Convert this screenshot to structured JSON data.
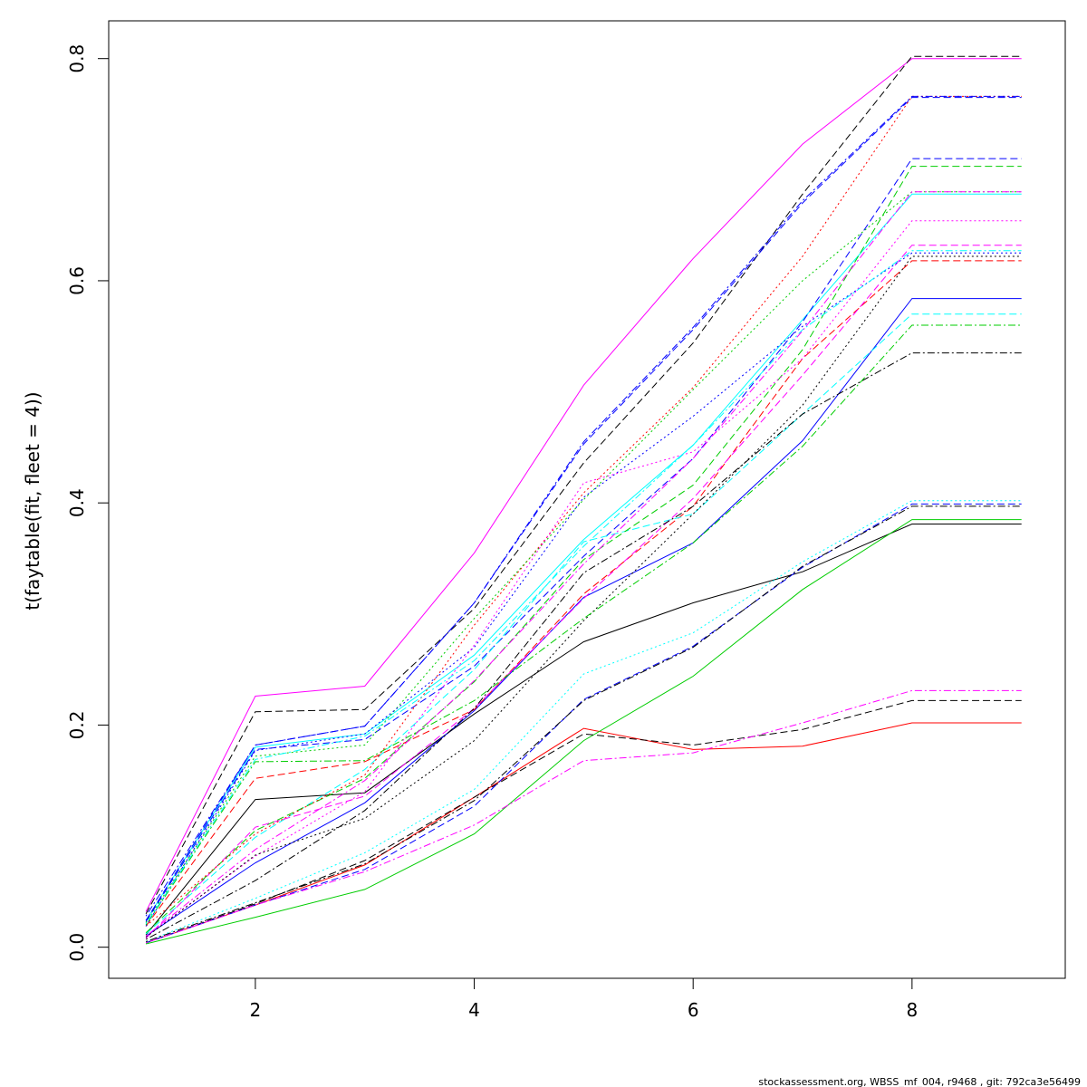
{
  "chart_data": {
    "type": "line",
    "title": "",
    "xlabel": "",
    "ylabel": "t(faytable(fit, fleet = 4))",
    "xlim": [
      0.66,
      9.4
    ],
    "ylim": [
      -0.028,
      0.834
    ],
    "x_ticks": [
      2,
      4,
      6,
      8
    ],
    "y_ticks": [
      0.0,
      0.2,
      0.4,
      0.6,
      0.8
    ],
    "x_tick_labels": [
      "2",
      "4",
      "6",
      "8"
    ],
    "y_tick_labels": [
      "0.0",
      "0.2",
      "0.4",
      "0.6",
      "0.8"
    ],
    "grid": false,
    "legend": "none",
    "x": [
      1,
      2,
      3,
      4,
      5,
      6,
      7,
      8,
      9
    ],
    "series": [
      {
        "color": "#000000",
        "dash": "solid",
        "values": [
          0.011,
          0.133,
          0.139,
          0.21,
          0.275,
          0.31,
          0.338,
          0.381,
          0.381
        ]
      },
      {
        "color": "#ff0000",
        "dash": "solid",
        "values": [
          0.004,
          0.038,
          0.074,
          0.135,
          0.197,
          0.178,
          0.181,
          0.202,
          0.202
        ]
      },
      {
        "color": "#00cd00",
        "dash": "solid",
        "values": [
          0.003,
          0.027,
          0.052,
          0.102,
          0.186,
          0.244,
          0.322,
          0.385,
          0.385
        ]
      },
      {
        "color": "#0000ff",
        "dash": "solid",
        "values": [
          0.01,
          0.076,
          0.13,
          0.213,
          0.315,
          0.364,
          0.456,
          0.584,
          0.584
        ]
      },
      {
        "color": "#00ffff",
        "dash": "solid",
        "values": [
          0.024,
          0.18,
          0.192,
          0.263,
          0.367,
          0.452,
          0.565,
          0.678,
          0.678
        ]
      },
      {
        "color": "#ff00ff",
        "dash": "solid",
        "values": [
          0.032,
          0.226,
          0.235,
          0.355,
          0.506,
          0.62,
          0.723,
          0.8,
          0.8
        ]
      },
      {
        "color": "#000000",
        "dash": "dashed",
        "values": [
          0.004,
          0.039,
          0.078,
          0.135,
          0.192,
          0.182,
          0.196,
          0.222,
          0.222
        ]
      },
      {
        "color": "#ff0000",
        "dash": "dashed",
        "values": [
          0.019,
          0.152,
          0.167,
          0.214,
          0.318,
          0.397,
          0.53,
          0.618,
          0.618
        ]
      },
      {
        "color": "#000000",
        "dash": "dashed",
        "values": [
          0.03,
          0.212,
          0.214,
          0.305,
          0.436,
          0.544,
          0.678,
          0.802,
          0.802
        ]
      },
      {
        "color": "#0000ff",
        "dash": "dashed",
        "values": [
          0.024,
          0.182,
          0.199,
          0.31,
          0.453,
          0.556,
          0.67,
          0.765,
          0.765
        ]
      },
      {
        "color": "#0000ff",
        "dash": "dashed",
        "values": [
          0.023,
          0.178,
          0.187,
          0.253,
          0.352,
          0.44,
          0.563,
          0.71,
          0.71
        ]
      },
      {
        "color": "#0000ff",
        "dash": "dashed",
        "values": [
          0.004,
          0.038,
          0.07,
          0.127,
          0.223,
          0.271,
          0.342,
          0.399,
          0.399
        ]
      },
      {
        "color": "#00ffff",
        "dash": "dashed",
        "values": [
          0.012,
          0.099,
          0.16,
          0.25,
          0.365,
          0.39,
          0.48,
          0.57,
          0.57
        ]
      },
      {
        "color": "#ff00ff",
        "dash": "dashed",
        "values": [
          0.008,
          0.108,
          0.136,
          0.215,
          0.314,
          0.404,
          0.515,
          0.632,
          0.632
        ]
      },
      {
        "color": "#00cd00",
        "dash": "dashed",
        "values": [
          0.013,
          0.105,
          0.152,
          0.239,
          0.349,
          0.416,
          0.538,
          0.703,
          0.703
        ]
      },
      {
        "color": "#ff0000",
        "dash": "dotted",
        "values": [
          0.019,
          0.102,
          0.155,
          0.29,
          0.409,
          0.504,
          0.622,
          0.766,
          0.766
        ]
      },
      {
        "color": "#00cd00",
        "dash": "dotted",
        "values": [
          0.022,
          0.172,
          0.182,
          0.296,
          0.403,
          0.502,
          0.6,
          0.68,
          0.68
        ]
      },
      {
        "color": "#0000ff",
        "dash": "dotted",
        "values": [
          0.019,
          0.177,
          0.192,
          0.27,
          0.405,
          0.478,
          0.559,
          0.625,
          0.625
        ]
      },
      {
        "color": "#00ffff",
        "dash": "dotted",
        "values": [
          0.005,
          0.044,
          0.085,
          0.142,
          0.246,
          0.283,
          0.347,
          0.402,
          0.402
        ]
      },
      {
        "color": "#ff00ff",
        "dash": "dotted",
        "values": [
          0.01,
          0.082,
          0.14,
          0.272,
          0.418,
          0.446,
          0.53,
          0.654,
          0.654
        ]
      },
      {
        "color": "#000000",
        "dash": "dotted",
        "values": [
          0.009,
          0.083,
          0.116,
          0.186,
          0.294,
          0.39,
          0.488,
          0.622,
          0.622
        ]
      },
      {
        "color": "#ff00ff",
        "dash": "dotdash",
        "values": [
          0.004,
          0.038,
          0.068,
          0.11,
          0.168,
          0.175,
          0.202,
          0.231,
          0.231
        ]
      },
      {
        "color": "#000000",
        "dash": "dotdash",
        "values": [
          0.007,
          0.06,
          0.123,
          0.215,
          0.337,
          0.397,
          0.48,
          0.535,
          0.535
        ]
      },
      {
        "color": "#00cd00",
        "dash": "dotdash",
        "values": [
          0.02,
          0.167,
          0.168,
          0.222,
          0.296,
          0.364,
          0.451,
          0.56,
          0.56
        ]
      },
      {
        "color": "#00ffff",
        "dash": "dotdash",
        "values": [
          0.021,
          0.169,
          0.19,
          0.258,
          0.361,
          0.452,
          0.556,
          0.627,
          0.627
        ]
      },
      {
        "color": "#0000ff",
        "dash": "dotdash",
        "values": [
          0.028,
          0.182,
          0.199,
          0.31,
          0.455,
          0.558,
          0.672,
          0.766,
          0.766
        ]
      },
      {
        "color": "#000000",
        "dash": "dotdash",
        "values": [
          0.005,
          0.04,
          0.075,
          0.132,
          0.222,
          0.27,
          0.343,
          0.397,
          0.397
        ]
      },
      {
        "color": "#ff00ff",
        "dash": "dotdash",
        "values": [
          0.01,
          0.088,
          0.15,
          0.24,
          0.345,
          0.44,
          0.555,
          0.68,
          0.68
        ]
      }
    ]
  },
  "footer": {
    "text": "stockassessment.org, WBSS_mf_004, r9468 , git: 792ca3e56499"
  }
}
